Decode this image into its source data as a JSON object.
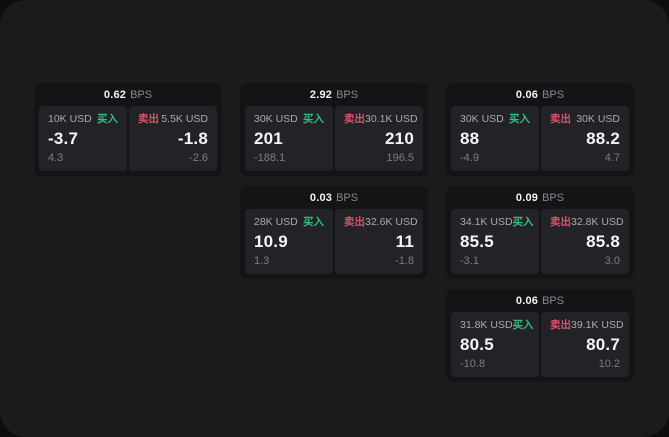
{
  "labels": {
    "buy": "买入",
    "sell": "卖出",
    "bps": "BPS"
  },
  "colors": {
    "buy_green": "#3aba80",
    "sell_red": "#d5536d",
    "page_bg": "#0d0d0f",
    "panel_bg": "#1b1b1e",
    "card_bg": "#141417",
    "tile_bg": "#232327"
  },
  "cards": [
    {
      "row": 1,
      "col": 1,
      "bps": "0.62",
      "buy": {
        "size": "10K USD",
        "price": "-3.7",
        "delta": "4.3"
      },
      "sell": {
        "size": "5.5K USD",
        "price": "-1.8",
        "delta": "-2.6"
      }
    },
    {
      "row": 1,
      "col": 2,
      "bps": "2.92",
      "buy": {
        "size": "30K USD",
        "price": "201",
        "delta": "-188.1"
      },
      "sell": {
        "size": "30.1K USD",
        "price": "210",
        "delta": "196.5"
      }
    },
    {
      "row": 1,
      "col": 3,
      "bps": "0.06",
      "buy": {
        "size": "30K USD",
        "price": "88",
        "delta": "-4.9"
      },
      "sell": {
        "size": "30K USD",
        "price": "88.2",
        "delta": "4.7"
      }
    },
    {
      "row": 2,
      "col": 2,
      "bps": "0.03",
      "buy": {
        "size": "28K USD",
        "price": "10.9",
        "delta": "1.3"
      },
      "sell": {
        "size": "32.6K USD",
        "price": "11",
        "delta": "-1.8"
      }
    },
    {
      "row": 2,
      "col": 3,
      "bps": "0.09",
      "buy": {
        "size": "34.1K USD",
        "price": "85.5",
        "delta": "-3.1"
      },
      "sell": {
        "size": "32.8K USD",
        "price": "85.8",
        "delta": "3.0"
      }
    },
    {
      "row": 3,
      "col": 3,
      "bps": "0.06",
      "buy": {
        "size": "31.8K USD",
        "price": "80.5",
        "delta": "-10.8"
      },
      "sell": {
        "size": "39.1K USD",
        "price": "80.7",
        "delta": "10.2"
      }
    }
  ]
}
